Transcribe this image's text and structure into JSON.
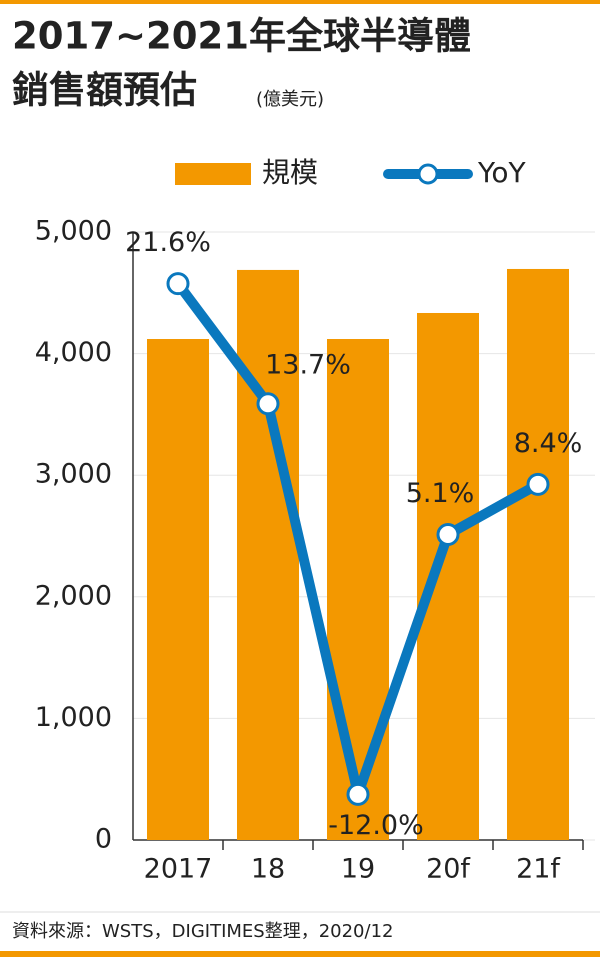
{
  "chart_data": {
    "type": "bar_line",
    "title": [
      "2017~2021年全球半導體",
      "銷售額預估"
    ],
    "unit": "(億美元)",
    "categories": [
      "2017",
      "18",
      "19",
      "20f",
      "21f"
    ],
    "series": [
      {
        "name": "規模",
        "type": "bar",
        "color": "#f39800",
        "values": [
          4120,
          4688,
          4120,
          4334,
          4696
        ]
      },
      {
        "name": "YoY",
        "type": "line",
        "axis": "y2",
        "color": "#0a78be",
        "values": [
          21.6,
          13.7,
          -12.0,
          5.1,
          8.4
        ],
        "value_labels": [
          "21.6%",
          "13.7%",
          "-12.0%",
          "5.1%",
          "8.4%"
        ]
      }
    ],
    "ylim": [
      0,
      5000
    ],
    "yticks": [
      0,
      {
        "value": 1000,
        "label": "1,000"
      },
      {
        "value": 2000,
        "label": "2,000"
      },
      {
        "value": 3000,
        "label": "3,000"
      },
      {
        "value": 4000,
        "label": "4,000"
      },
      {
        "value": 5000,
        "label": "5,000"
      }
    ],
    "y2lim": [
      -15,
      25
    ],
    "grid": true,
    "source": "資料來源：WSTS，DIGITIMES整理，2020/12"
  }
}
